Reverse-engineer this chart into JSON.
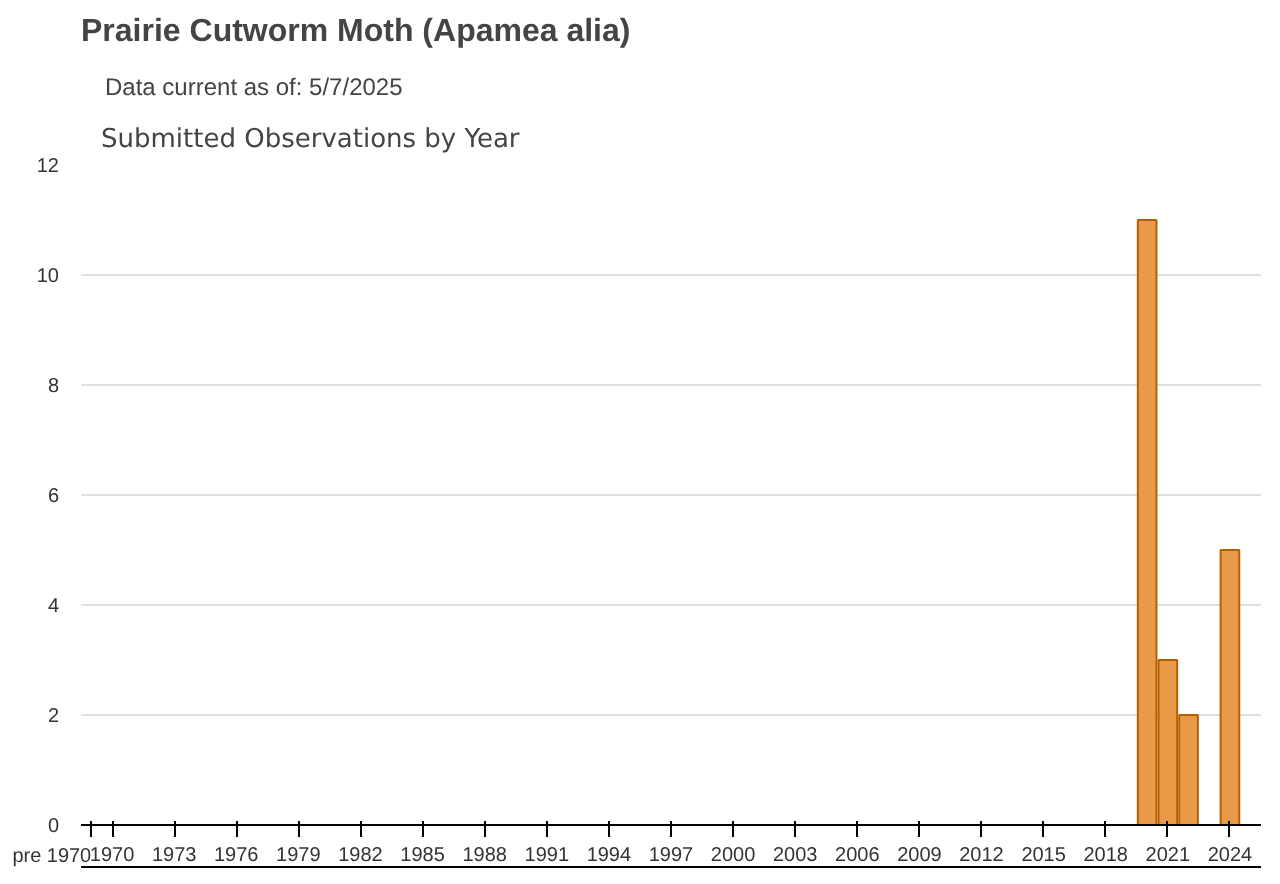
{
  "chart_data": {
    "type": "bar",
    "title": "Prairie Cutworm Moth   (Apamea alia)",
    "subtitle": "Data current as of: 5/7/2025",
    "annotations": [
      "Submitted Observations by Year"
    ],
    "categories": [
      "pre 1970",
      "1970",
      null,
      null,
      "1973",
      null,
      null,
      "1976",
      null,
      null,
      "1979",
      null,
      null,
      "1982",
      null,
      null,
      "1985",
      null,
      null,
      "1988",
      null,
      null,
      "1991",
      null,
      null,
      "1994",
      null,
      null,
      "1997",
      null,
      null,
      "2000",
      null,
      null,
      "2003",
      null,
      null,
      "2006",
      null,
      null,
      "2009",
      null,
      null,
      "2012",
      null,
      null,
      "2015",
      null,
      null,
      "2018",
      null,
      null,
      "2021",
      null,
      null,
      "2024",
      null
    ],
    "values": [
      null,
      null,
      null,
      null,
      null,
      null,
      null,
      null,
      null,
      null,
      null,
      null,
      null,
      null,
      null,
      null,
      null,
      null,
      null,
      null,
      null,
      null,
      null,
      null,
      null,
      null,
      null,
      null,
      null,
      null,
      null,
      null,
      null,
      null,
      null,
      null,
      null,
      null,
      null,
      null,
      null,
      null,
      null,
      null,
      null,
      null,
      null,
      null,
      null,
      null,
      null,
      11,
      3,
      2,
      null,
      5,
      null
    ],
    "color": "#e89a48",
    "ylim": [
      0,
      12
    ],
    "yticks": [
      0,
      2,
      4,
      6,
      8,
      10,
      12
    ],
    "grid": "y"
  }
}
